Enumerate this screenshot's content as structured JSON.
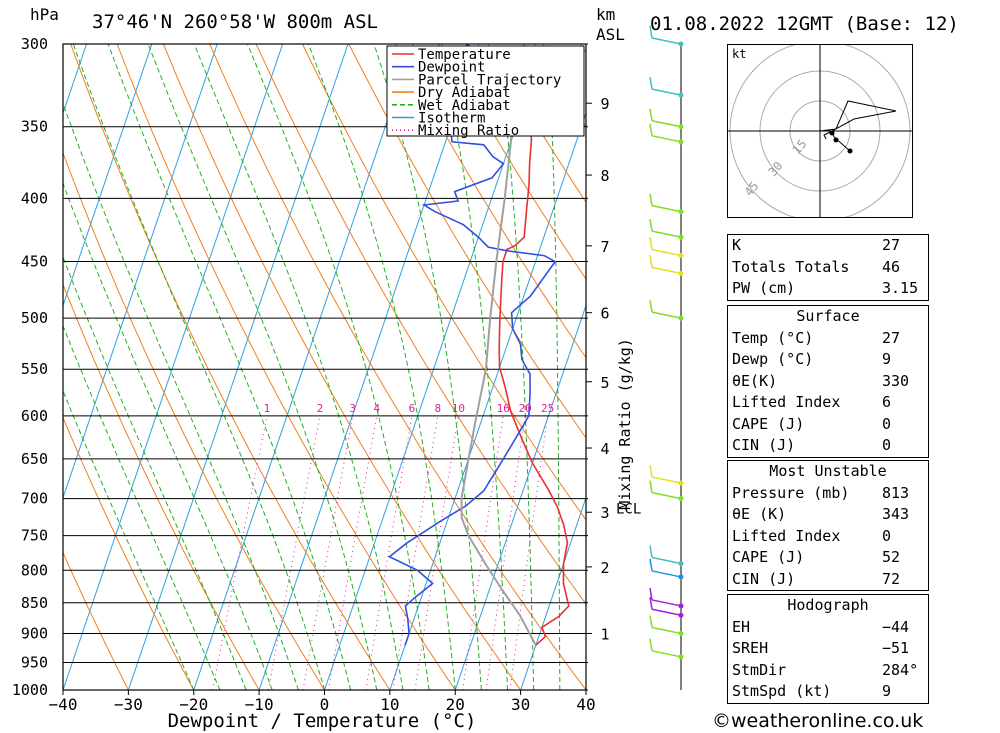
{
  "header": {
    "location": "37°46'N  260°58'W  800m  ASL",
    "datetime": "01.08.2022  12GMT  (Base: 12)",
    "hpa_label": "hPa",
    "km_label": "km",
    "asl_label": "ASL"
  },
  "chart_data": {
    "type": "line",
    "title": "37°46'N  260°58'W  800m  ASL",
    "xlabel": "Dewpoint / Temperature (°C)",
    "ylabel": "hPa",
    "xlim": [
      -40,
      40
    ],
    "ylim": [
      1000,
      300
    ],
    "x_ticks": [
      "−40",
      "−30",
      "−20",
      "−10",
      "0",
      "10",
      "20",
      "30",
      "40"
    ],
    "pressure_levels": [
      300,
      350,
      400,
      450,
      500,
      550,
      600,
      650,
      700,
      750,
      800,
      850,
      900,
      950,
      1000
    ],
    "km_ticks": [
      {
        "label": "1",
        "p": 900
      },
      {
        "label": "2",
        "p": 795
      },
      {
        "label": "3",
        "p": 718
      },
      {
        "label": "4",
        "p": 637
      },
      {
        "label": "5",
        "p": 563
      },
      {
        "label": "6",
        "p": 495
      },
      {
        "label": "7",
        "p": 437
      },
      {
        "label": "8",
        "p": 383
      },
      {
        "label": "9",
        "p": 335
      }
    ],
    "mixing_ratio_label": "Mixing Ratio (g/kg)",
    "mixing_ratio_values": [
      "1",
      "2",
      "3",
      "4",
      "6",
      "8",
      "10",
      "16",
      "20",
      "25"
    ],
    "lcl_label": "LCL",
    "legend": [
      "Temperature",
      "Dewpoint",
      "Parcel Trajectory",
      "Dry Adiabat",
      "Wet Adiabat",
      "Isotherm",
      "Mixing Ratio"
    ],
    "series": [
      {
        "name": "Temperature",
        "color": "#e83030",
        "points": [
          [
            30,
            920
          ],
          [
            31,
            905
          ],
          [
            30,
            890
          ],
          [
            32,
            872
          ],
          [
            33,
            855
          ],
          [
            31,
            820
          ],
          [
            30,
            790
          ],
          [
            29.5,
            760
          ],
          [
            28,
            735
          ],
          [
            26,
            710
          ],
          [
            24,
            690
          ],
          [
            20,
            655
          ],
          [
            17,
            625
          ],
          [
            14,
            595
          ],
          [
            12,
            570
          ],
          [
            10,
            548
          ],
          [
            9,
            530
          ],
          [
            8,
            510
          ],
          [
            7,
            490
          ],
          [
            6,
            470
          ],
          [
            5,
            450
          ],
          [
            5,
            440
          ],
          [
            6,
            437
          ],
          [
            7,
            430
          ],
          [
            6,
            410
          ],
          [
            5,
            390
          ],
          [
            4,
            375
          ],
          [
            3,
            358
          ],
          [
            2,
            350
          ],
          [
            1,
            340
          ]
        ]
      },
      {
        "name": "Dewpoint",
        "color": "#3050e0",
        "points": [
          [
            10,
            920
          ],
          [
            10,
            900
          ],
          [
            9,
            875
          ],
          [
            8,
            855
          ],
          [
            9,
            842
          ],
          [
            11,
            820
          ],
          [
            8,
            800
          ],
          [
            3,
            780
          ],
          [
            5,
            760
          ],
          [
            9,
            730
          ],
          [
            12,
            710
          ],
          [
            14,
            690
          ],
          [
            15,
            660
          ],
          [
            16,
            630
          ],
          [
            17,
            600
          ],
          [
            16,
            575
          ],
          [
            15,
            555
          ],
          [
            13,
            540
          ],
          [
            12,
            525
          ],
          [
            10,
            510
          ],
          [
            9,
            495
          ],
          [
            11,
            480
          ],
          [
            12,
            465
          ],
          [
            13,
            450
          ],
          [
            11,
            445
          ],
          [
            5,
            441
          ],
          [
            2,
            438
          ],
          [
            0,
            430
          ],
          [
            -3,
            420
          ],
          [
            -8,
            410
          ],
          [
            -10,
            405
          ],
          [
            -5,
            402
          ],
          [
            -6,
            395
          ],
          [
            -1,
            385
          ],
          [
            0,
            375
          ],
          [
            -2,
            370
          ],
          [
            -4,
            362
          ],
          [
            -9,
            360
          ],
          [
            -10,
            350
          ],
          [
            -3,
            352
          ],
          [
            -7,
            345
          ],
          [
            -9,
            340
          ],
          [
            -2,
            338
          ],
          [
            -5,
            333
          ],
          [
            -9,
            330
          ],
          [
            -4,
            322
          ],
          [
            -10,
            320
          ],
          [
            -14,
            312
          ],
          [
            -9,
            305
          ],
          [
            -12,
            300
          ]
        ]
      },
      {
        "name": "Parcel Trajectory",
        "color": "#a0a0a0",
        "points": [
          [
            30,
            920
          ],
          [
            26,
            870
          ],
          [
            22,
            830
          ],
          [
            18,
            790
          ],
          [
            14,
            750
          ],
          [
            12,
            725
          ],
          [
            11,
            700
          ],
          [
            10,
            650
          ],
          [
            9,
            600
          ],
          [
            8,
            550
          ],
          [
            6,
            500
          ],
          [
            4,
            450
          ],
          [
            2,
            400
          ],
          [
            0,
            360
          ],
          [
            -2,
            330
          ],
          [
            -3,
            300
          ]
        ]
      }
    ]
  },
  "hodograph": {
    "unit_label": "kt",
    "ring_labels": [
      "15",
      "30",
      "45"
    ]
  },
  "wind_barbs": [
    {
      "p": 300,
      "color": "#40c0c0"
    },
    {
      "p": 330,
      "color": "#40c0c0"
    },
    {
      "p": 350,
      "color": "#80e020"
    },
    {
      "p": 360,
      "color": "#80e020"
    },
    {
      "p": 410,
      "color": "#80e020"
    },
    {
      "p": 430,
      "color": "#80e020"
    },
    {
      "p": 445,
      "color": "#e0e020"
    },
    {
      "p": 460,
      "color": "#e0e020"
    },
    {
      "p": 500,
      "color": "#80e020"
    },
    {
      "p": 680,
      "color": "#e0e020"
    },
    {
      "p": 700,
      "color": "#80e020"
    },
    {
      "p": 790,
      "color": "#40c0c0"
    },
    {
      "p": 810,
      "color": "#2090e0"
    },
    {
      "p": 855,
      "color": "#a020e0"
    },
    {
      "p": 870,
      "color": "#a020e0"
    },
    {
      "p": 900,
      "color": "#80e020"
    },
    {
      "p": 940,
      "color": "#80e020"
    }
  ],
  "indices": [
    {
      "label": "K",
      "value": "27"
    },
    {
      "label": "Totals Totals",
      "value": "46"
    },
    {
      "label": "PW (cm)",
      "value": "3.15"
    }
  ],
  "surface": {
    "title": "Surface",
    "rows": [
      {
        "label": "Temp (°C)",
        "value": "27"
      },
      {
        "label": "Dewp (°C)",
        "value": "9"
      },
      {
        "label": "θE(K)",
        "value": "330"
      },
      {
        "label": "Lifted Index",
        "value": "6"
      },
      {
        "label": "CAPE (J)",
        "value": "0"
      },
      {
        "label": "CIN (J)",
        "value": "0"
      }
    ]
  },
  "most_unstable": {
    "title": "Most Unstable",
    "rows": [
      {
        "label": "Pressure (mb)",
        "value": "813"
      },
      {
        "label": "θE (K)",
        "value": "343"
      },
      {
        "label": "Lifted Index",
        "value": "0"
      },
      {
        "label": "CAPE (J)",
        "value": "52"
      },
      {
        "label": "CIN (J)",
        "value": "72"
      }
    ]
  },
  "hodograph_table": {
    "title": "Hodograph",
    "rows": [
      {
        "label": "EH",
        "value": "−44"
      },
      {
        "label": "SREH",
        "value": "−51"
      },
      {
        "label": "StmDir",
        "value": "284°"
      },
      {
        "label": "StmSpd (kt)",
        "value": "9"
      }
    ]
  },
  "credit": "©weatheronline.co.uk",
  "colors": {
    "dry_adiabat": "#f08020",
    "wet_adiabat": "#20b020",
    "isotherm": "#30a0e0",
    "mixing_ratio": "#e020a0",
    "temperature": "#e83030",
    "dewpoint": "#3050e0",
    "parcel": "#a0a0a0"
  }
}
